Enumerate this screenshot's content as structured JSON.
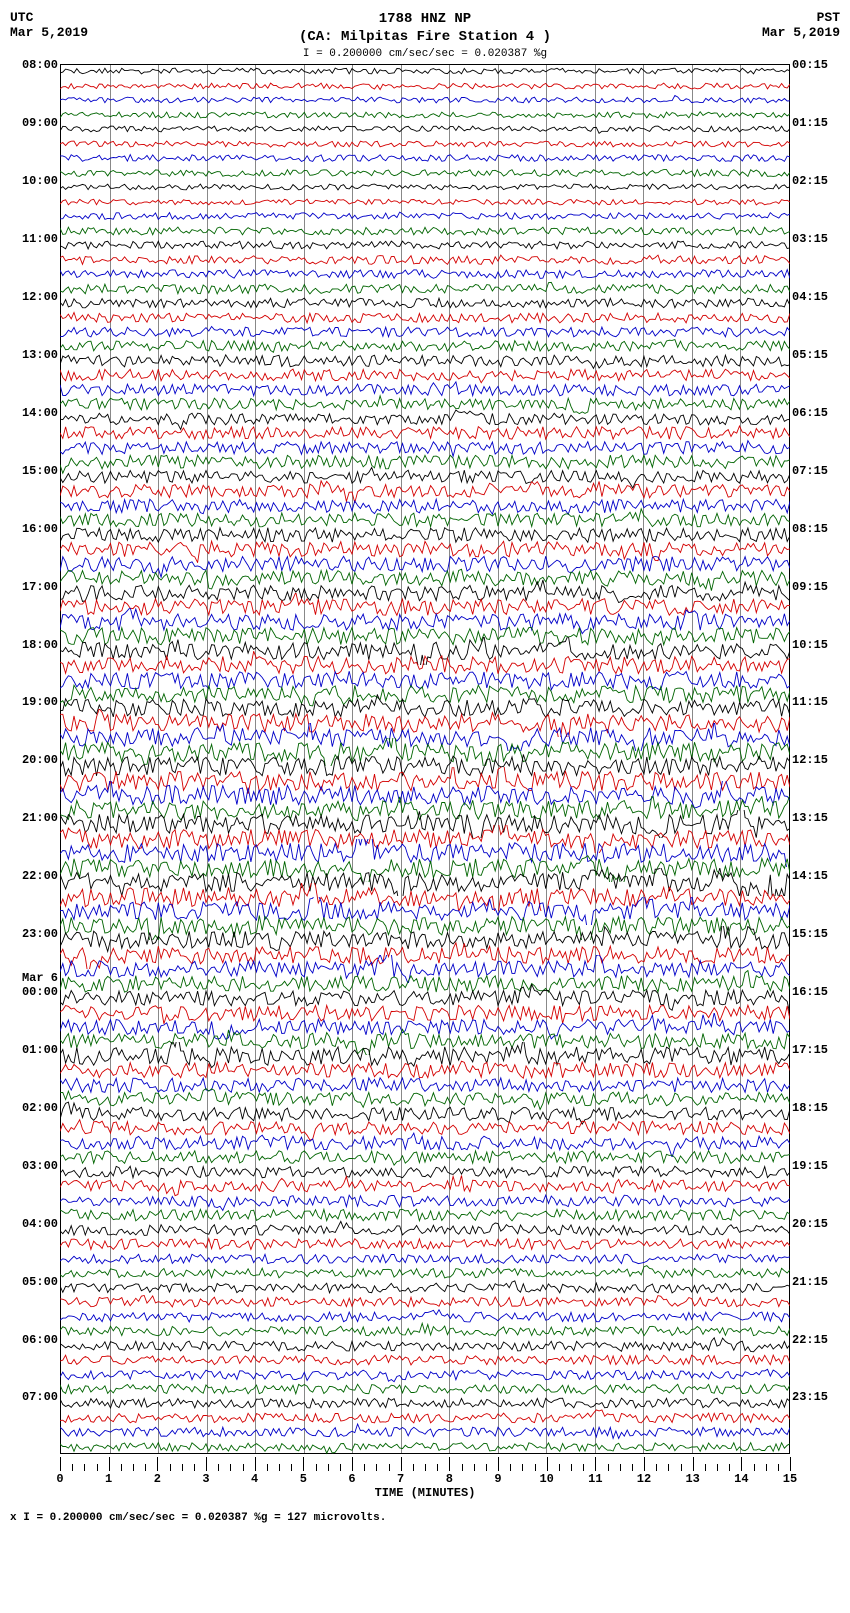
{
  "header": {
    "station_id": "1788 HNZ NP",
    "location": "(CA: Milpitas Fire Station 4 )",
    "left_tz": "UTC",
    "left_date": "Mar 5,2019",
    "right_tz": "PST",
    "right_date": "Mar 5,2019",
    "scale_text": "= 0.200000 cm/sec/sec = 0.020387 %g",
    "scale_marker": "I"
  },
  "chart": {
    "type": "seismogram",
    "background_color": "#ffffff",
    "grid_color": "#888888",
    "text_color": "#000000",
    "font_family": "Courier New",
    "title_fontsize": 14,
    "label_fontsize": 12,
    "trace_colors": [
      "#000000",
      "#d40000",
      "#0000c8",
      "#006400"
    ],
    "x_axis": {
      "title": "TIME (MINUTES)",
      "min": 0,
      "max": 15,
      "major_ticks": [
        0,
        1,
        2,
        3,
        4,
        5,
        6,
        7,
        8,
        9,
        10,
        11,
        12,
        13,
        14,
        15
      ],
      "minor_per_major": 3
    },
    "left_labels": [
      "08:00",
      "",
      "",
      "",
      "09:00",
      "",
      "",
      "",
      "10:00",
      "",
      "",
      "",
      "11:00",
      "",
      "",
      "",
      "12:00",
      "",
      "",
      "",
      "13:00",
      "",
      "",
      "",
      "14:00",
      "",
      "",
      "",
      "15:00",
      "",
      "",
      "",
      "16:00",
      "",
      "",
      "",
      "17:00",
      "",
      "",
      "",
      "18:00",
      "",
      "",
      "",
      "19:00",
      "",
      "",
      "",
      "20:00",
      "",
      "",
      "",
      "21:00",
      "",
      "",
      "",
      "22:00",
      "",
      "",
      "",
      "23:00",
      "",
      "",
      "",
      "00:00",
      "",
      "",
      "",
      "01:00",
      "",
      "",
      "",
      "02:00",
      "",
      "",
      "",
      "03:00",
      "",
      "",
      "",
      "04:00",
      "",
      "",
      "",
      "05:00",
      "",
      "",
      "",
      "06:00",
      "",
      "",
      "",
      "07:00",
      "",
      "",
      ""
    ],
    "right_labels": [
      "00:15",
      "",
      "",
      "",
      "01:15",
      "",
      "",
      "",
      "02:15",
      "",
      "",
      "",
      "03:15",
      "",
      "",
      "",
      "04:15",
      "",
      "",
      "",
      "05:15",
      "",
      "",
      "",
      "06:15",
      "",
      "",
      "",
      "07:15",
      "",
      "",
      "",
      "08:15",
      "",
      "",
      "",
      "09:15",
      "",
      "",
      "",
      "10:15",
      "",
      "",
      "",
      "11:15",
      "",
      "",
      "",
      "12:15",
      "",
      "",
      "",
      "13:15",
      "",
      "",
      "",
      "14:15",
      "",
      "",
      "",
      "15:15",
      "",
      "",
      "",
      "16:15",
      "",
      "",
      "",
      "17:15",
      "",
      "",
      "",
      "18:15",
      "",
      "",
      "",
      "19:15",
      "",
      "",
      "",
      "20:15",
      "",
      "",
      "",
      "21:15",
      "",
      "",
      "",
      "22:15",
      "",
      "",
      "",
      "23:15",
      "",
      "",
      ""
    ],
    "utc_date_break": {
      "index": 64,
      "label": "Mar 6"
    },
    "num_traces": 96,
    "trace_amplitude_profile": [
      0.3,
      0.3,
      0.3,
      0.3,
      0.3,
      0.3,
      0.35,
      0.35,
      0.3,
      0.3,
      0.35,
      0.4,
      0.4,
      0.45,
      0.45,
      0.5,
      0.5,
      0.5,
      0.5,
      0.55,
      0.6,
      0.6,
      0.6,
      0.6,
      0.6,
      0.65,
      0.65,
      0.7,
      0.7,
      0.7,
      0.7,
      0.7,
      0.75,
      0.8,
      0.8,
      0.8,
      0.8,
      0.85,
      0.85,
      0.9,
      0.9,
      0.9,
      0.9,
      0.9,
      0.95,
      0.95,
      1.0,
      1.0,
      1.0,
      1.0,
      1.0,
      1.0,
      1.0,
      1.0,
      1.0,
      1.0,
      1.0,
      1.0,
      0.95,
      0.95,
      0.9,
      0.9,
      0.85,
      0.85,
      0.8,
      0.8,
      0.8,
      0.8,
      0.95,
      0.8,
      0.75,
      0.7,
      0.7,
      0.7,
      0.7,
      0.65,
      0.6,
      0.6,
      0.6,
      0.6,
      0.55,
      0.55,
      0.5,
      0.5,
      0.5,
      0.5,
      0.5,
      0.5,
      0.5,
      0.5,
      0.5,
      0.5,
      0.5,
      0.5,
      0.5,
      0.45
    ],
    "noise_seed": 1788
  },
  "footer": {
    "text": "= 0.200000 cm/sec/sec = 0.020387 %g =   127 microvolts.",
    "marker": "I",
    "prefix": "x"
  }
}
